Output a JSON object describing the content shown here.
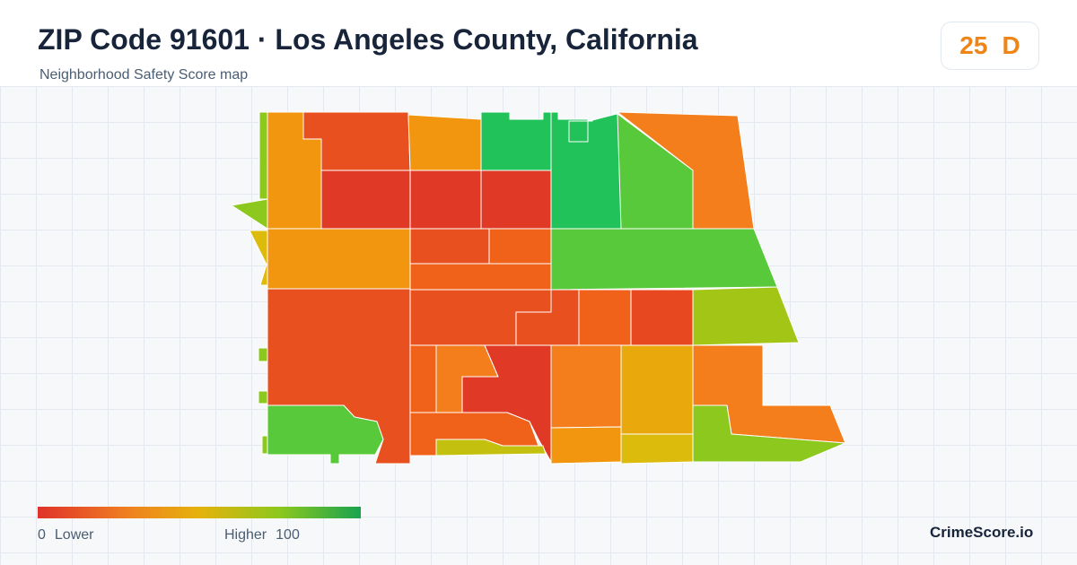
{
  "header": {
    "title": "ZIP Code 91601 · Los Angeles County, California",
    "subtitle": "Neighborhood Safety Score map"
  },
  "score_badge": {
    "score": "25",
    "grade": "D",
    "color": "#ef8417"
  },
  "legend": {
    "min_value": "0",
    "min_label": "Lower",
    "max_label": "Higher",
    "max_value": "100",
    "colors": [
      "#e0322a",
      "#ef8020",
      "#e5b20c",
      "#8cc81e",
      "#19a34f"
    ]
  },
  "brand": "CrimeScore.io",
  "map": {
    "region_colors": {
      "red": "#e03a26",
      "red_orange": "#e8501f",
      "orange": "#f47e1c",
      "amber": "#f2950f",
      "gold": "#e9a90c",
      "yellow": "#dcbb0c",
      "lime": "#a3c516",
      "light_green": "#58c93a",
      "green": "#21c25a"
    }
  }
}
